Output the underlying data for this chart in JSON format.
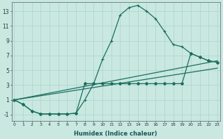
{
  "bg_color": "#c8e8e0",
  "line_color": "#1a6e5e",
  "xlabel": "Humidex (Indice chaleur)",
  "xlim": [
    0,
    23
  ],
  "ylim": [
    -1.8,
    14.2
  ],
  "yticks": [
    -1,
    1,
    3,
    5,
    7,
    9,
    11,
    13
  ],
  "xticks": [
    0,
    1,
    2,
    3,
    4,
    5,
    6,
    7,
    8,
    9,
    10,
    11,
    12,
    13,
    14,
    15,
    16,
    17,
    18,
    19,
    20,
    21,
    22,
    23
  ],
  "curve1_x": [
    0,
    1,
    2,
    3,
    4,
    5,
    6,
    7,
    8,
    9,
    10,
    11,
    12,
    13,
    14,
    15,
    16,
    17,
    18,
    19,
    20,
    21,
    22,
    23
  ],
  "curve1_y": [
    1.0,
    0.4,
    -0.5,
    -0.9,
    -0.9,
    -0.9,
    -0.9,
    -0.8,
    1.0,
    3.2,
    6.5,
    9.0,
    12.5,
    13.5,
    13.8,
    13.0,
    12.0,
    10.3,
    8.5,
    8.2,
    7.3,
    6.8,
    6.3,
    6.1
  ],
  "curve2_x": [
    0,
    1,
    2,
    3,
    4,
    5,
    6,
    7,
    8,
    9,
    10,
    11,
    12,
    13,
    14,
    15,
    16,
    17,
    18,
    19,
    20,
    21,
    22,
    23
  ],
  "curve2_y": [
    1.0,
    0.4,
    -0.5,
    -0.9,
    -0.9,
    -0.9,
    -0.9,
    -0.8,
    3.2,
    3.2,
    3.2,
    3.2,
    3.2,
    3.2,
    3.2,
    3.2,
    3.2,
    3.2,
    3.2,
    3.2,
    7.3,
    6.8,
    6.3,
    6.1
  ],
  "line1_x": [
    0,
    23
  ],
  "line1_y": [
    1.0,
    6.3
  ],
  "line2_x": [
    0,
    23
  ],
  "line2_y": [
    1.0,
    5.3
  ],
  "xlabel_fontsize": 6,
  "ytick_fontsize": 5.5,
  "xtick_fontsize": 4.5,
  "linewidth": 0.9,
  "marker1": "+",
  "marker2": "D",
  "markersize1": 3.5,
  "markersize2": 2.0
}
